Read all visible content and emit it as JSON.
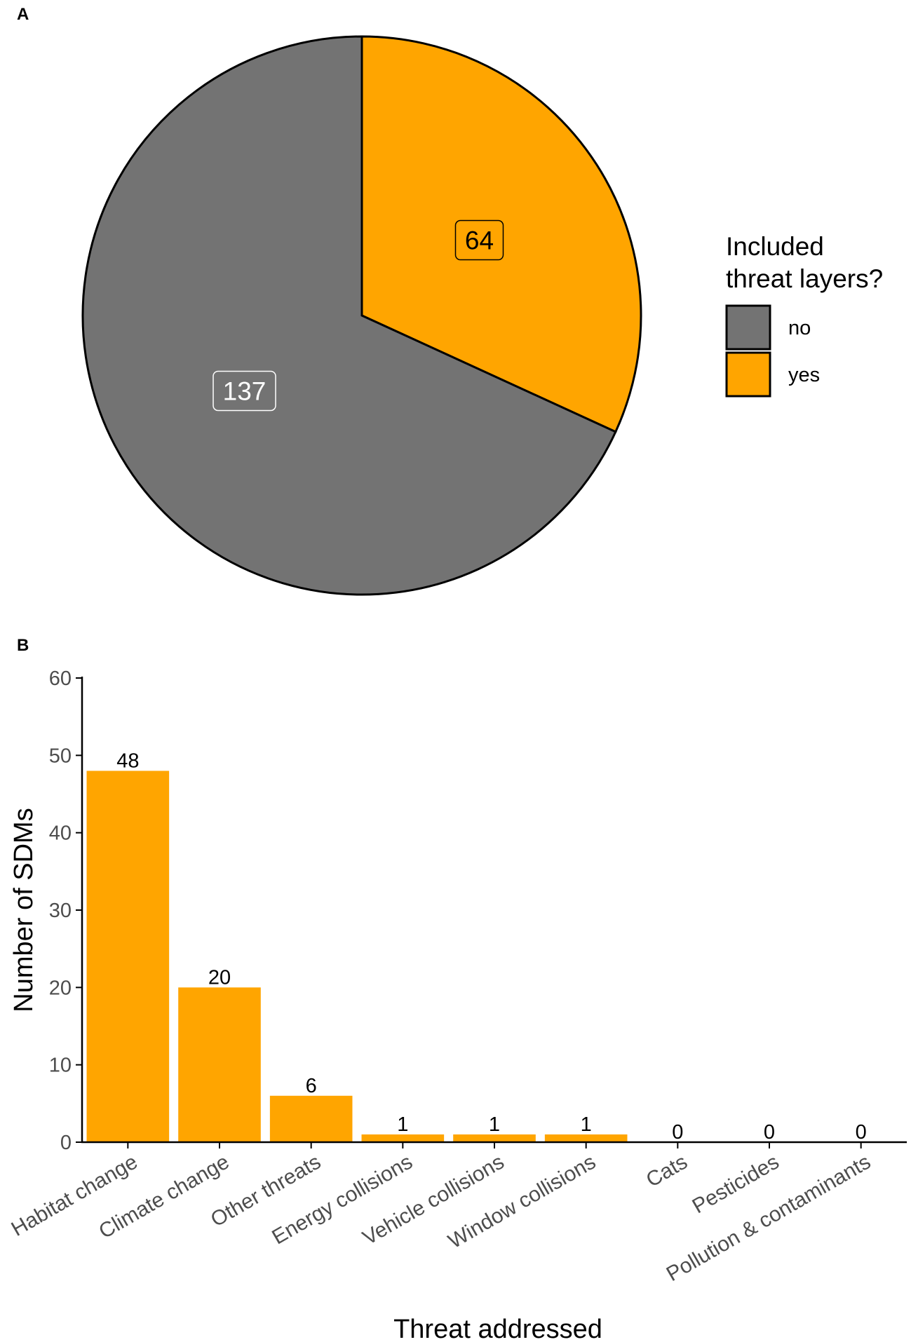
{
  "panels": {
    "a_letter": "A",
    "b_letter": "B"
  },
  "colors": {
    "no": "#737373",
    "yes": "#FFA500",
    "outline": "#000000",
    "tick_text": "#4d4d4d"
  },
  "chart_data": [
    {
      "type": "pie",
      "title": "",
      "legend": {
        "title_lines": [
          "Included",
          "threat layers?"
        ],
        "placement": "right"
      },
      "slices": [
        {
          "label": "no",
          "value": 137,
          "color": "#737373"
        },
        {
          "label": "yes",
          "value": 64,
          "color": "#FFA500"
        }
      ]
    },
    {
      "type": "bar",
      "title": "",
      "xlabel": "Threat addressed",
      "ylabel": "Number of SDMs",
      "ylim": [
        0,
        60
      ],
      "yticks": [
        0,
        10,
        20,
        30,
        40,
        50,
        60
      ],
      "grid": false,
      "bar_color": "#FFA500",
      "categories": [
        "Habitat change",
        "Climate change",
        "Other threats",
        "Energy collisions",
        "Vehicle collisions",
        "Window collisions",
        "Cats",
        "Pesticides",
        "Pollution & contaminants"
      ],
      "values": [
        48,
        20,
        6,
        1,
        1,
        1,
        0,
        0,
        0
      ]
    }
  ]
}
